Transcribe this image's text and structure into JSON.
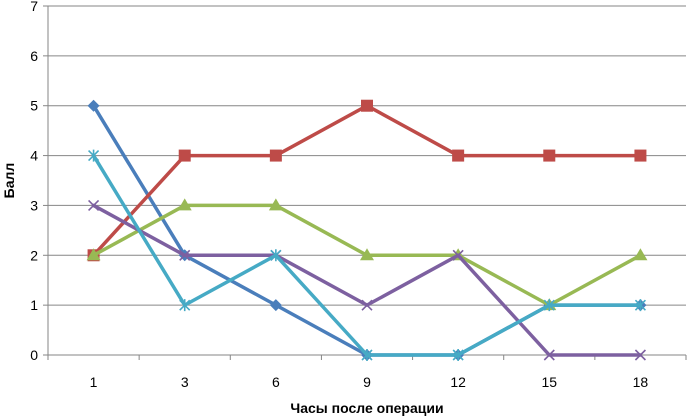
{
  "chart_data": {
    "type": "line",
    "xlabel": "Часы после операции",
    "ylabel": "Балл",
    "categories": [
      "1",
      "3",
      "6",
      "9",
      "12",
      "15",
      "18"
    ],
    "ylim": [
      0,
      7
    ],
    "yticks": [
      "0",
      "1",
      "2",
      "3",
      "4",
      "5",
      "6",
      "7"
    ],
    "grid": true,
    "legend": "none",
    "series": [
      {
        "values": [
          5,
          2,
          1,
          0,
          0,
          1,
          1
        ],
        "color": "#4a7ebb",
        "marker": "diamond"
      },
      {
        "values": [
          2,
          4,
          4,
          5,
          4,
          4,
          4
        ],
        "color": "#be4b48",
        "marker": "square"
      },
      {
        "values": [
          2,
          3,
          3,
          2,
          2,
          1,
          2
        ],
        "color": "#98b954",
        "marker": "triangle"
      },
      {
        "values": [
          3,
          2,
          2,
          1,
          2,
          0,
          0
        ],
        "color": "#7d60a0",
        "marker": "x"
      },
      {
        "values": [
          4,
          1,
          2,
          0,
          0,
          1,
          1
        ],
        "color": "#46aac5",
        "marker": "star"
      }
    ]
  }
}
